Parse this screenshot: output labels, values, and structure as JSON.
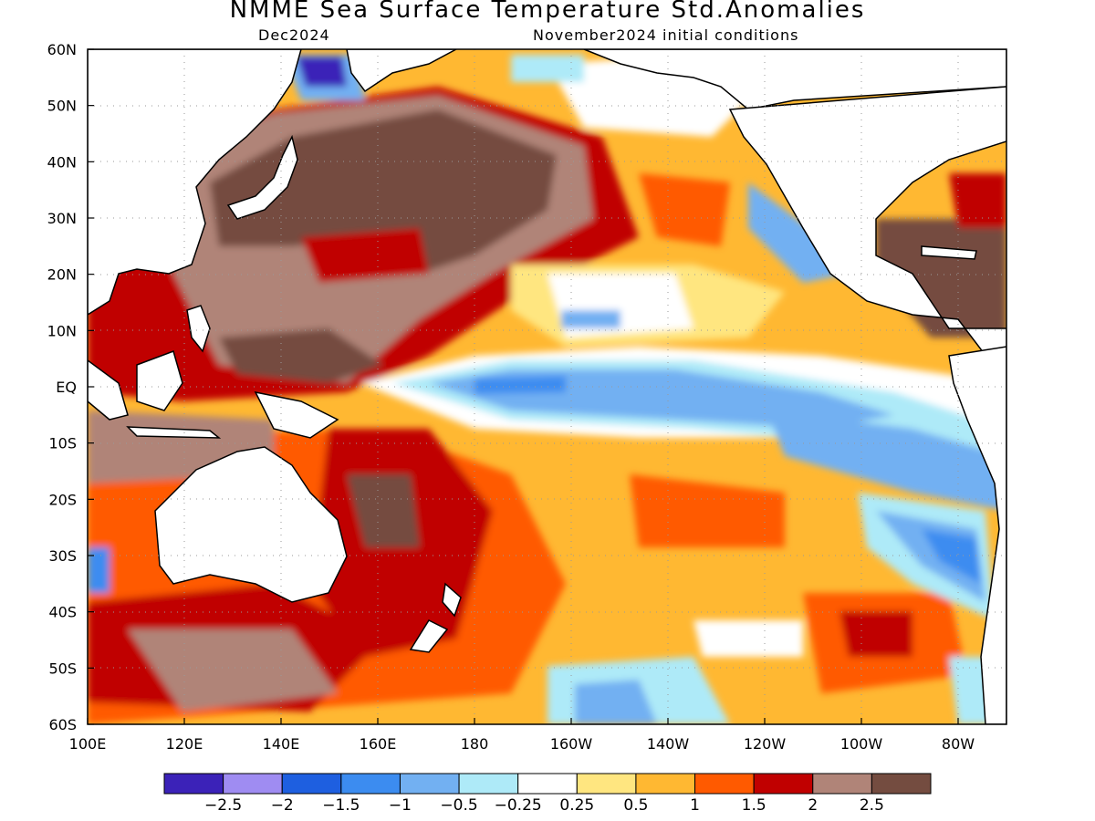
{
  "title": "NMME Sea Surface Temperature Std.Anomalies",
  "subtitle_left": "Dec2024",
  "subtitle_right": "November2024 initial conditions",
  "map": {
    "lon_range": [
      100,
      290
    ],
    "lat_range": [
      -60,
      60
    ],
    "lon_ticks": [
      {
        "lon": 100,
        "label": "100E"
      },
      {
        "lon": 120,
        "label": "120E"
      },
      {
        "lon": 140,
        "label": "140E"
      },
      {
        "lon": 160,
        "label": "160E"
      },
      {
        "lon": 180,
        "label": "180"
      },
      {
        "lon": 200,
        "label": "160W"
      },
      {
        "lon": 220,
        "label": "140W"
      },
      {
        "lon": 240,
        "label": "120W"
      },
      {
        "lon": 260,
        "label": "100W"
      },
      {
        "lon": 280,
        "label": "80W"
      }
    ],
    "lat_ticks": [
      {
        "lat": 60,
        "label": "60N"
      },
      {
        "lat": 50,
        "label": "50N"
      },
      {
        "lat": 40,
        "label": "40N"
      },
      {
        "lat": 30,
        "label": "30N"
      },
      {
        "lat": 20,
        "label": "20N"
      },
      {
        "lat": 10,
        "label": "10N"
      },
      {
        "lat": 0,
        "label": "EQ"
      },
      {
        "lat": -10,
        "label": "10S"
      },
      {
        "lat": -20,
        "label": "20S"
      },
      {
        "lat": -30,
        "label": "30S"
      },
      {
        "lat": -40,
        "label": "40S"
      },
      {
        "lat": -50,
        "label": "50S"
      },
      {
        "lat": -60,
        "label": "60S"
      }
    ],
    "grid": true
  },
  "colorbar": {
    "colors": [
      "#3b22b8",
      "#9f8cf2",
      "#1e5fe0",
      "#3c8cf0",
      "#72b0f2",
      "#aeeaf8",
      "#ffffff",
      "#ffe680",
      "#ffb832",
      "#ff5a00",
      "#c00000",
      "#b08478",
      "#744c40"
    ],
    "labels": [
      "−2.5",
      "−2",
      "−1.5",
      "−1",
      "−0.5",
      "−0.25",
      "0.25",
      "0.5",
      "1",
      "1.5",
      "2",
      "2.5"
    ]
  }
}
